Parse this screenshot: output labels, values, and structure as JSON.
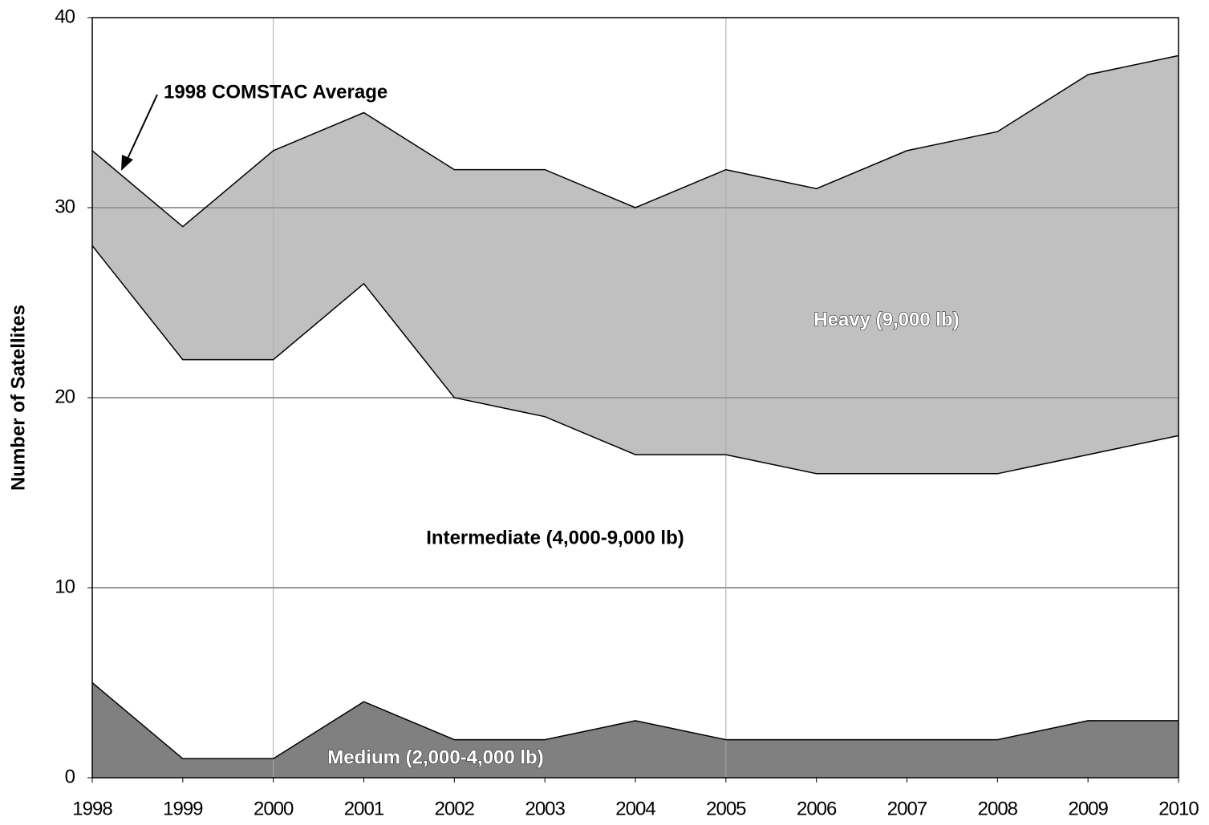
{
  "chart_data": {
    "type": "stacked_area",
    "y_label": "Number of Satellites",
    "x": [
      1998,
      1999,
      2000,
      2001,
      2002,
      2003,
      2004,
      2005,
      2006,
      2007,
      2008,
      2009,
      2010
    ],
    "xlim": [
      1998,
      2010
    ],
    "xticks": [
      1998,
      1999,
      2000,
      2001,
      2002,
      2003,
      2004,
      2005,
      2006,
      2007,
      2008,
      2009,
      2010
    ],
    "xgrid": [
      2000,
      2005
    ],
    "ylim": [
      0,
      40
    ],
    "yticks": [
      0,
      10,
      20,
      30,
      40
    ],
    "grid": true,
    "series": [
      {
        "name": "Medium (2,000-4,000 lb)",
        "color": "#808080",
        "values": [
          5,
          1,
          1,
          4,
          2,
          2,
          3,
          2,
          2,
          2,
          2,
          3,
          3
        ]
      },
      {
        "name": "Intermediate (4,000-9,000 lb)",
        "color": "#ffffff",
        "values": [
          23,
          21,
          21,
          22,
          18,
          17,
          14,
          15,
          14,
          14,
          14,
          14,
          15
        ]
      },
      {
        "name": "Heavy (9,000 lb)",
        "color": "#c0c0c0",
        "values": [
          5,
          7,
          11,
          9,
          12,
          13,
          13,
          15,
          15,
          17,
          18,
          20,
          20
        ]
      }
    ],
    "annotations": [
      {
        "text": "1998 COMSTAC Average"
      }
    ]
  }
}
